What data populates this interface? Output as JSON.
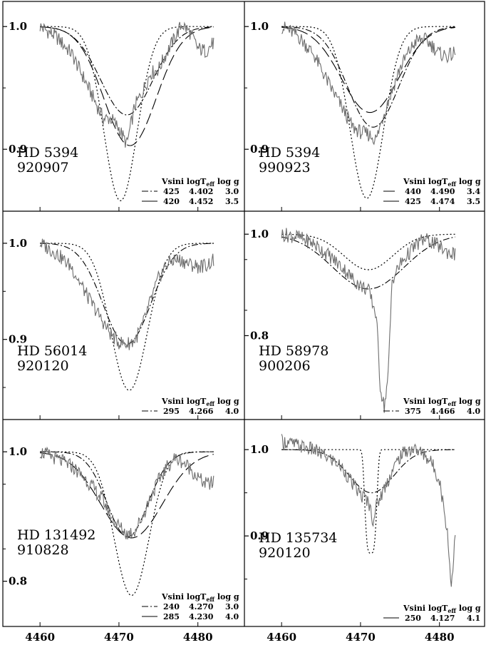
{
  "chart_data": [
    {
      "type": "line",
      "panel": "top-left",
      "star": "HD 5394",
      "date": "920907",
      "x_range": [
        4458,
        4484
      ],
      "ylim": [
        0.86,
        1.01
      ],
      "yticks": [
        {
          "label": "1.0",
          "value": 1.0
        },
        {
          "label": "0.9",
          "value": 0.9
        }
      ],
      "legend": {
        "header": [
          "Vsini",
          "logT",
          "eff",
          "log g"
        ],
        "rows": [
          {
            "style": "dashdot",
            "vsini": "425",
            "logteff": "4.402",
            "logg": "3.0"
          },
          {
            "style": "solid",
            "vsini": "420",
            "logteff": "4.452",
            "logg": "3.5"
          }
        ]
      },
      "series": [
        {
          "style": "dashdot",
          "center": 4471.0,
          "depth": 0.072,
          "width": 3.3
        },
        {
          "style": "longdash",
          "center": 4471.4,
          "depth": 0.097,
          "width": 3.3
        },
        {
          "style": "dotted",
          "center": 4470.2,
          "depth": 0.142,
          "width": 2.1
        },
        {
          "style": "observed",
          "points": [
            [
              4460,
              1.0
            ],
            [
              4462,
              0.992
            ],
            [
              4464,
              0.978
            ],
            [
              4466,
              0.952
            ],
            [
              4468,
              0.925
            ],
            [
              4469,
              0.925
            ],
            [
              4470,
              0.917
            ],
            [
              4471,
              0.904
            ],
            [
              4472,
              0.935
            ],
            [
              4473,
              0.947
            ],
            [
              4474,
              0.962
            ],
            [
              4475,
              0.965
            ],
            [
              4476,
              0.978
            ],
            [
              4477,
              0.99
            ],
            [
              4478,
              1.002
            ],
            [
              4479,
              0.995
            ],
            [
              4480,
              0.982
            ],
            [
              4481,
              0.98
            ],
            [
              4482,
              0.987
            ],
            [
              4483,
              0.992
            ]
          ]
        }
      ]
    },
    {
      "type": "line",
      "panel": "top-right",
      "star": "HD 5394",
      "date": "990923",
      "x_range": [
        4458,
        4484
      ],
      "ylim": [
        0.86,
        1.01
      ],
      "yticks": [
        {
          "label": "1.0",
          "value": 1.0
        },
        {
          "label": "0.9",
          "value": 0.9
        }
      ],
      "legend": {
        "header": [
          "Vsini",
          "logT",
          "eff",
          "log g"
        ],
        "rows": [
          {
            "style": "longdash",
            "vsini": "440",
            "logteff": "4.490",
            "logg": "3.4"
          },
          {
            "style": "solid",
            "vsini": "425",
            "logteff": "4.474",
            "logg": "3.5"
          }
        ]
      },
      "series": [
        {
          "style": "longdash",
          "center": 4471.2,
          "depth": 0.07,
          "width": 3.6
        },
        {
          "style": "dashdot",
          "center": 4471.6,
          "depth": 0.082,
          "width": 3.2
        },
        {
          "style": "dotted",
          "center": 4470.8,
          "depth": 0.14,
          "width": 2.1
        },
        {
          "style": "observed",
          "points": [
            [
              4460,
              1.0
            ],
            [
              4462,
              0.993
            ],
            [
              4464,
              0.978
            ],
            [
              4466,
              0.953
            ],
            [
              4468,
              0.93
            ],
            [
              4469,
              0.918
            ],
            [
              4470,
              0.914
            ],
            [
              4471,
              0.912
            ],
            [
              4472,
              0.908
            ],
            [
              4473,
              0.93
            ],
            [
              4474,
              0.948
            ],
            [
              4475,
              0.966
            ],
            [
              4476,
              0.978
            ],
            [
              4477,
              0.988
            ],
            [
              4478,
              0.99
            ],
            [
              4479,
              0.985
            ],
            [
              4480,
              0.978
            ],
            [
              4481,
              0.976
            ],
            [
              4482,
              0.978
            ],
            [
              4483,
              0.985
            ]
          ]
        }
      ]
    },
    {
      "type": "line",
      "panel": "middle-left",
      "star": "HD 56014",
      "date": "920120",
      "x_range": [
        4458,
        4484
      ],
      "ylim": [
        0.83,
        1.02
      ],
      "yticks": [
        {
          "label": "1.0",
          "value": 1.0
        },
        {
          "label": "0.9",
          "value": 0.9
        }
      ],
      "legend": {
        "header": [
          "Vsini",
          "logT",
          "eff",
          "log g"
        ],
        "rows": [
          {
            "style": "dashdot",
            "vsini": "295",
            "logteff": "4.266",
            "logg": "4.0"
          }
        ]
      },
      "series": [
        {
          "style": "dashdot",
          "center": 4471.0,
          "depth": 0.105,
          "width": 3.0
        },
        {
          "style": "dotted",
          "center": 4471.3,
          "depth": 0.153,
          "width": 2.3
        },
        {
          "style": "observed",
          "points": [
            [
              4460,
              1.0
            ],
            [
              4462,
              0.99
            ],
            [
              4464,
              0.975
            ],
            [
              4466,
              0.945
            ],
            [
              4468,
              0.918
            ],
            [
              4469,
              0.905
            ],
            [
              4470,
              0.897
            ],
            [
              4471,
              0.895
            ],
            [
              4472,
              0.899
            ],
            [
              4473,
              0.915
            ],
            [
              4474,
              0.94
            ],
            [
              4475,
              0.963
            ],
            [
              4476,
              0.978
            ],
            [
              4477,
              0.983
            ],
            [
              4478,
              0.982
            ],
            [
              4479,
              0.978
            ],
            [
              4480,
              0.976
            ],
            [
              4481,
              0.977
            ],
            [
              4482,
              0.982
            ],
            [
              4483,
              0.986
            ]
          ]
        }
      ]
    },
    {
      "type": "line",
      "panel": "middle-right",
      "star": "HD 58978",
      "date": "900206",
      "x_range": [
        4458,
        4484
      ],
      "ylim": [
        0.66,
        1.02
      ],
      "yticks": [
        {
          "label": "1.0",
          "value": 1.0
        },
        {
          "label": "0.8",
          "value": 0.8
        }
      ],
      "legend": {
        "header": [
          "Vsini",
          "logT",
          "eff",
          "log g"
        ],
        "rows": [
          {
            "style": "dashdot",
            "vsini": "375",
            "logteff": "4.466",
            "logg": "4.0"
          }
        ]
      },
      "series": [
        {
          "style": "dashdot",
          "center": 4471.0,
          "depth": 0.108,
          "width": 4.5
        },
        {
          "style": "dotted",
          "center": 4471.0,
          "depth": 0.07,
          "width": 3.1
        },
        {
          "style": "observed",
          "points": [
            [
              4460,
              1.0
            ],
            [
              4462,
              0.995
            ],
            [
              4464,
              0.982
            ],
            [
              4466,
              0.958
            ],
            [
              4468,
              0.93
            ],
            [
              4469,
              0.912
            ],
            [
              4470,
              0.898
            ],
            [
              4471,
              0.89
            ],
            [
              4472,
              0.84
            ],
            [
              4472.5,
              0.7
            ],
            [
              4473,
              0.66
            ],
            [
              4473.5,
              0.72
            ],
            [
              4474,
              0.91
            ],
            [
              4475,
              0.94
            ],
            [
              4476,
              0.96
            ],
            [
              4477,
              0.978
            ],
            [
              4478,
              0.99
            ],
            [
              4479,
              0.985
            ],
            [
              4480,
              0.975
            ],
            [
              4481,
              0.965
            ],
            [
              4482,
              0.96
            ],
            [
              4483,
              0.962
            ]
          ]
        }
      ]
    },
    {
      "type": "line",
      "panel": "bottom-left",
      "star": "HD 131492",
      "date": "910828",
      "x_range": [
        4458,
        4484
      ],
      "ylim": [
        0.75,
        1.03
      ],
      "yticks": [
        {
          "label": "1.0",
          "value": 1.0
        },
        {
          "label": "0.8",
          "value": 0.8
        }
      ],
      "legend": {
        "header": [
          "Vsini",
          "logT",
          "eff",
          "log g"
        ],
        "rows": [
          {
            "style": "dashdot",
            "vsini": "240",
            "logteff": "4.270",
            "logg": "3.0"
          },
          {
            "style": "solid",
            "vsini": "285",
            "logteff": "4.230",
            "logg": "4.0"
          }
        ]
      },
      "series": [
        {
          "style": "dashdot",
          "center": 4471.1,
          "depth": 0.131,
          "width": 2.6
        },
        {
          "style": "longdash",
          "center": 4471.6,
          "depth": 0.133,
          "width": 3.9
        },
        {
          "style": "dotted",
          "center": 4471.6,
          "depth": 0.222,
          "width": 2.2
        },
        {
          "style": "observed",
          "points": [
            [
              4460,
              1.0
            ],
            [
              4462,
              0.99
            ],
            [
              4464,
              0.978
            ],
            [
              4466,
              0.955
            ],
            [
              4468,
              0.925
            ],
            [
              4469,
              0.9
            ],
            [
              4470,
              0.885
            ],
            [
              4471,
              0.873
            ],
            [
              4472,
              0.878
            ],
            [
              4473,
              0.9
            ],
            [
              4474,
              0.93
            ],
            [
              4475,
              0.955
            ],
            [
              4476,
              0.975
            ],
            [
              4477,
              0.99
            ],
            [
              4478,
              0.985
            ],
            [
              4479,
              0.975
            ],
            [
              4480,
              0.96
            ],
            [
              4481,
              0.95
            ],
            [
              4482,
              0.952
            ],
            [
              4483,
              0.955
            ]
          ]
        }
      ]
    },
    {
      "type": "line",
      "panel": "bottom-right",
      "star": "HD 135734",
      "date": "920120",
      "x_range": [
        4458,
        4484
      ],
      "ylim": [
        0.81,
        1.02
      ],
      "yticks": [
        {
          "label": "1.0",
          "value": 1.0
        },
        {
          "label": "0.9",
          "value": 0.9
        }
      ],
      "legend": {
        "header": [
          "Vsini",
          "logT",
          "eff",
          "log g"
        ],
        "rows": [
          {
            "style": "solid",
            "vsini": "250",
            "logteff": "4.127",
            "logg": "4.1"
          }
        ]
      },
      "series": [
        {
          "style": "dashdot",
          "center": 4471.4,
          "depth": 0.05,
          "width": 2.8
        },
        {
          "style": "dotted",
          "center": 4471.3,
          "depth": 0.12,
          "width": 1.3,
          "flat": true
        },
        {
          "style": "observed",
          "points": [
            [
              4460,
              1.01
            ],
            [
              4462,
              1.005
            ],
            [
              4464,
              1.0
            ],
            [
              4466,
              0.99
            ],
            [
              4467,
              0.985
            ],
            [
              4468,
              0.975
            ],
            [
              4469,
              0.96
            ],
            [
              4470,
              0.948
            ],
            [
              4471,
              0.94
            ],
            [
              4471.6,
              0.918
            ],
            [
              4472,
              0.935
            ],
            [
              4473,
              0.955
            ],
            [
              4474,
              0.975
            ],
            [
              4475,
              0.992
            ],
            [
              4476,
              1.0
            ],
            [
              4477,
              1.0
            ],
            [
              4478,
              0.995
            ],
            [
              4479,
              0.985
            ],
            [
              4480,
              0.965
            ],
            [
              4481,
              0.905
            ],
            [
              4481.5,
              0.84
            ],
            [
              4482,
              0.905
            ],
            [
              4483,
              0.955
            ]
          ]
        }
      ]
    }
  ],
  "x_axis": {
    "ticks": [
      4460,
      4470,
      4480
    ],
    "labels": [
      "4460",
      "4470",
      "4480"
    ]
  }
}
